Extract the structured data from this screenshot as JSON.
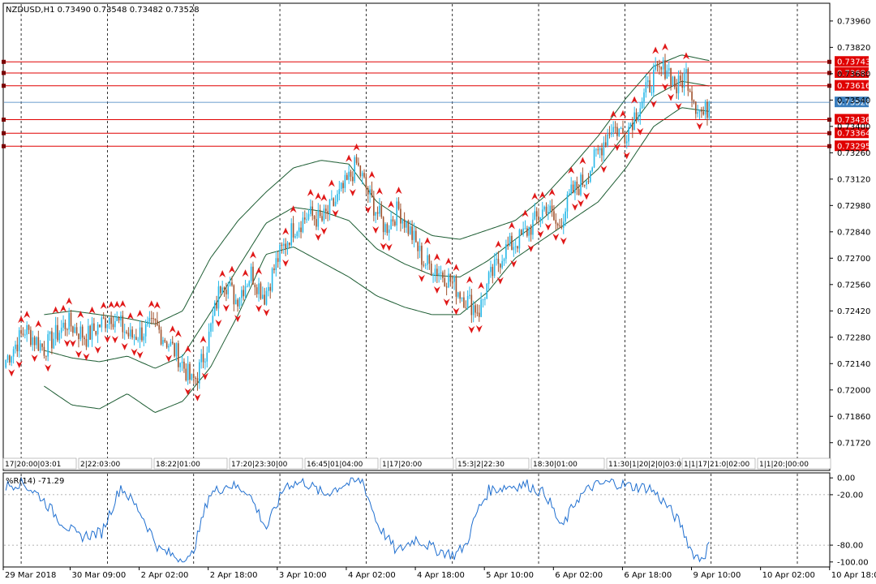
{
  "chart_data": [
    {
      "type": "candlestick",
      "symbol_header": "NZDUSD,H1  0.73490 0.73548 0.73482 0.73528",
      "ylim": [
        0.7165,
        0.7405
      ],
      "y_ticks": [
        {
          "value": 0.7396,
          "label": "0.73960"
        },
        {
          "value": 0.7382,
          "label": "0.73820"
        },
        {
          "value": 0.7368,
          "label": "0.73680"
        },
        {
          "value": 0.7354,
          "label": "0.73540"
        },
        {
          "value": 0.734,
          "label": "0.73400"
        },
        {
          "value": 0.7326,
          "label": "0.73260"
        },
        {
          "value": 0.7312,
          "label": "0.73120"
        },
        {
          "value": 0.7298,
          "label": "0.72980"
        },
        {
          "value": 0.7284,
          "label": "0.72840"
        },
        {
          "value": 0.727,
          "label": "0.72700"
        },
        {
          "value": 0.7256,
          "label": "0.72560"
        },
        {
          "value": 0.7242,
          "label": "0.72420"
        },
        {
          "value": 0.7228,
          "label": "0.72280"
        },
        {
          "value": 0.7214,
          "label": "0.72140"
        },
        {
          "value": 0.72,
          "label": "0.72000"
        },
        {
          "value": 0.7186,
          "label": "0.71860"
        },
        {
          "value": 0.7172,
          "label": "0.71720"
        }
      ],
      "current_price": {
        "value": 0.73528,
        "label": "0.73528",
        "color": "#3a7dbd"
      },
      "levels": [
        {
          "value": 0.73743,
          "label": "0.73743"
        },
        {
          "value": 0.73684,
          "label": "0.73684"
        },
        {
          "value": 0.73616,
          "label": "0.73616"
        },
        {
          "value": 0.73436,
          "label": "0.73436"
        },
        {
          "value": 0.73364,
          "label": "0.73364"
        },
        {
          "value": 0.73295,
          "label": "0.73295"
        }
      ],
      "level_color": "#e00000",
      "time_tags": [
        "17|20:00|03:01",
        "2|22:03:00",
        "18:22|01:00",
        "17:20|23:30|00",
        "16:45|01|04:00",
        "1|17|20:00",
        "15:3|2|22:30",
        "18:30|01:00",
        "11:30|1|20|2|0|03:00",
        "1|1|17|21:0|02:00",
        "1|1|20:|00:00"
      ],
      "keypoints": [
        [
          0,
          0.7216
        ],
        [
          10,
          0.7232
        ],
        [
          20,
          0.7222
        ],
        [
          32,
          0.7236
        ],
        [
          42,
          0.7228
        ],
        [
          55,
          0.724
        ],
        [
          65,
          0.7228
        ],
        [
          78,
          0.7234
        ],
        [
          90,
          0.7218
        ],
        [
          97,
          0.7204
        ],
        [
          100,
          0.7208
        ],
        [
          105,
          0.7224
        ],
        [
          113,
          0.726
        ],
        [
          120,
          0.7248
        ],
        [
          128,
          0.7262
        ],
        [
          135,
          0.725
        ],
        [
          142,
          0.727
        ],
        [
          150,
          0.7286
        ],
        [
          158,
          0.7293
        ],
        [
          165,
          0.729
        ],
        [
          172,
          0.73
        ],
        [
          178,
          0.731
        ],
        [
          183,
          0.732
        ],
        [
          190,
          0.7302
        ],
        [
          198,
          0.7286
        ],
        [
          205,
          0.7296
        ],
        [
          212,
          0.7282
        ],
        [
          218,
          0.7268
        ],
        [
          225,
          0.7264
        ],
        [
          232,
          0.7258
        ],
        [
          240,
          0.7248
        ],
        [
          247,
          0.7242
        ],
        [
          252,
          0.7258
        ],
        [
          260,
          0.7274
        ],
        [
          268,
          0.728
        ],
        [
          275,
          0.7288
        ],
        [
          282,
          0.7298
        ],
        [
          288,
          0.7286
        ],
        [
          295,
          0.7304
        ],
        [
          302,
          0.7312
        ],
        [
          309,
          0.7326
        ],
        [
          316,
          0.734
        ],
        [
          323,
          0.7336
        ],
        [
          330,
          0.735
        ],
        [
          338,
          0.7366
        ],
        [
          345,
          0.7372
        ],
        [
          350,
          0.736
        ],
        [
          355,
          0.7368
        ],
        [
          360,
          0.7352
        ],
        [
          364,
          0.7346
        ],
        [
          368,
          0.7353
        ]
      ],
      "bollinger": {
        "upper": [
          0.724,
          0.7242,
          0.724,
          0.7238,
          0.7235,
          0.7242,
          0.727,
          0.729,
          0.7305,
          0.7318,
          0.7322,
          0.732,
          0.73,
          0.729,
          0.7282,
          0.728,
          0.7285,
          0.729,
          0.7302,
          0.7318,
          0.7335,
          0.7355,
          0.7372,
          0.7378,
          0.7375
        ],
        "lower": [
          0.7202,
          0.7192,
          0.719,
          0.7198,
          0.7188,
          0.7194,
          0.7212,
          0.724,
          0.7272,
          0.7276,
          0.7268,
          0.726,
          0.725,
          0.7244,
          0.724,
          0.724,
          0.7252,
          0.727,
          0.728,
          0.729,
          0.73,
          0.7318,
          0.734,
          0.735,
          0.7348
        ]
      },
      "band_color": "#1c5c32",
      "bull_color": "#26b8e8",
      "bear_color": "#a0522d",
      "fractal_color": "#e01818"
    },
    {
      "type": "line",
      "title": "%R(14) -71.29",
      "ylim": [
        -105,
        5
      ],
      "y_ticks": [
        {
          "value": 0,
          "label": "0.00"
        },
        {
          "value": -20,
          "label": "-20.00"
        },
        {
          "value": -80,
          "label": "-80.00"
        },
        {
          "value": -100,
          "label": "-100.00"
        }
      ],
      "line_color": "#1f6fd0",
      "keypoints": [
        [
          0,
          -10
        ],
        [
          8,
          -5
        ],
        [
          18,
          -22
        ],
        [
          28,
          -50
        ],
        [
          38,
          -70
        ],
        [
          50,
          -65
        ],
        [
          60,
          -10
        ],
        [
          70,
          -40
        ],
        [
          80,
          -85
        ],
        [
          90,
          -95
        ],
        [
          96,
          -98
        ],
        [
          100,
          -70
        ],
        [
          106,
          -20
        ],
        [
          116,
          -8
        ],
        [
          126,
          -15
        ],
        [
          136,
          -60
        ],
        [
          146,
          -8
        ],
        [
          156,
          -5
        ],
        [
          166,
          -20
        ],
        [
          176,
          -8
        ],
        [
          186,
          -3
        ],
        [
          194,
          -55
        ],
        [
          204,
          -88
        ],
        [
          214,
          -72
        ],
        [
          224,
          -85
        ],
        [
          234,
          -92
        ],
        [
          240,
          -80
        ],
        [
          246,
          -40
        ],
        [
          252,
          -15
        ],
        [
          262,
          -10
        ],
        [
          272,
          -8
        ],
        [
          282,
          -20
        ],
        [
          290,
          -60
        ],
        [
          298,
          -25
        ],
        [
          306,
          -10
        ],
        [
          316,
          -5
        ],
        [
          326,
          -10
        ],
        [
          336,
          -12
        ],
        [
          344,
          -30
        ],
        [
          352,
          -55
        ],
        [
          358,
          -88
        ],
        [
          362,
          -96
        ],
        [
          365,
          -90
        ],
        [
          368,
          -72
        ]
      ]
    }
  ],
  "x_axis": {
    "labels": [
      {
        "bar": 0,
        "text": "29 Mar 2018"
      },
      {
        "bar": 31,
        "text": "30 Mar 09:00"
      },
      {
        "bar": 63,
        "text": "2 Apr 02:00"
      },
      {
        "bar": 95,
        "text": "2 Apr 18:00"
      },
      {
        "bar": 127,
        "text": "3 Apr 10:00"
      },
      {
        "bar": 159,
        "text": "4 Apr 02:00"
      },
      {
        "bar": 191,
        "text": "4 Apr 18:00"
      },
      {
        "bar": 223,
        "text": "5 Apr 10:00"
      },
      {
        "bar": 255,
        "text": "6 Apr 02:00"
      },
      {
        "bar": 287,
        "text": "6 Apr 18:00"
      },
      {
        "bar": 319,
        "text": "9 Apr 10:00"
      },
      {
        "bar": 351,
        "text": "10 Apr 02:00"
      },
      {
        "bar": 383,
        "text": "10 Apr 18:00"
      }
    ],
    "total_bars": 368,
    "visible_bars": 430,
    "day_separator_bars": [
      8,
      53,
      98,
      143,
      188,
      233,
      278,
      323,
      368,
      413
    ]
  }
}
